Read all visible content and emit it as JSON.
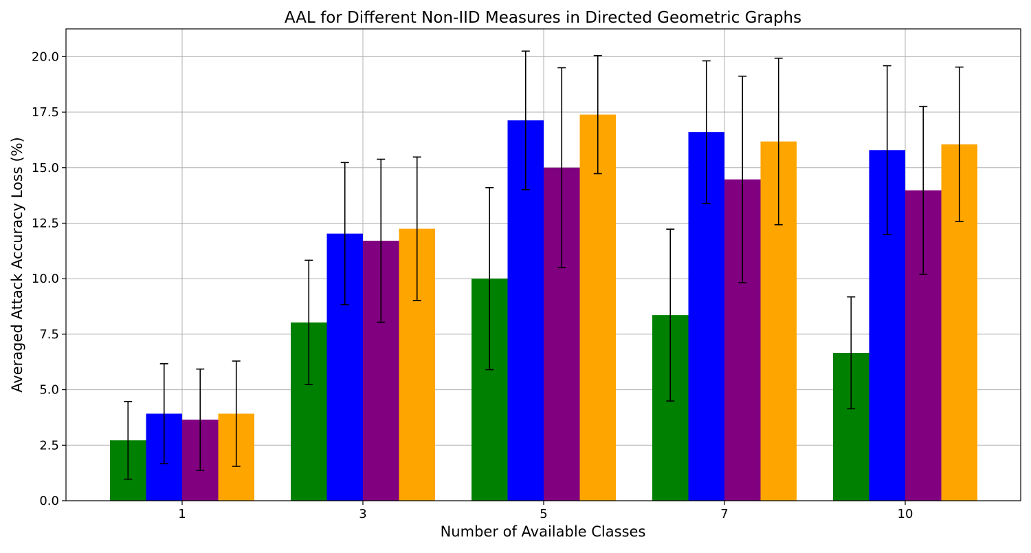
{
  "chart_data": {
    "type": "bar",
    "title": "AAL for Different Non-IID Measures in Directed Geometric Graphs",
    "xlabel": "Number of Available Classes",
    "ylabel": "Averaged Attack Accuracy Loss (%)",
    "categories": [
      "1",
      "3",
      "5",
      "7",
      "10"
    ],
    "ylim": [
      0,
      21.25
    ],
    "yticks": [
      "0.0",
      "2.5",
      "5.0",
      "7.5",
      "10.0",
      "12.5",
      "15.0",
      "17.5",
      "20.0"
    ],
    "grid": true,
    "legend": "none",
    "series": [
      {
        "color": "#008000",
        "values": [
          2.72,
          8.03,
          10.0,
          8.36,
          6.66
        ],
        "errors": [
          1.75,
          2.8,
          4.1,
          3.87,
          2.52
        ]
      },
      {
        "color": "#0000ff",
        "values": [
          3.92,
          12.03,
          17.13,
          16.6,
          15.79
        ],
        "errors": [
          2.25,
          3.2,
          3.12,
          3.21,
          3.8
        ]
      },
      {
        "color": "#800080",
        "values": [
          3.65,
          11.71,
          15.0,
          14.47,
          13.98
        ],
        "errors": [
          2.28,
          3.67,
          4.5,
          4.65,
          3.78
        ]
      },
      {
        "color": "#ffa500",
        "values": [
          3.92,
          12.25,
          17.39,
          16.18,
          16.05
        ],
        "errors": [
          2.37,
          3.23,
          2.66,
          3.75,
          3.48
        ]
      }
    ]
  }
}
